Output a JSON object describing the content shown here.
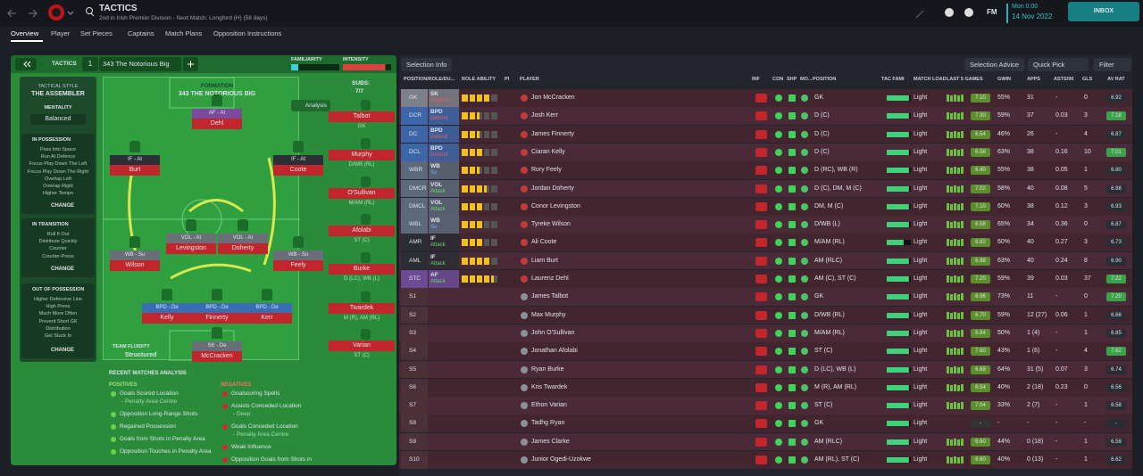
{
  "header": {
    "title": "TACTICS",
    "subtitle": "2nd in Irish Premier Division - Next Match: Longford (H) (58 days)",
    "time": "Mon 0:00",
    "date": "14 Nov 2022",
    "fm": "FM",
    "inbox": "INBOX"
  },
  "tabs": [
    "Overview",
    "Player",
    "Set Pieces",
    "Captains",
    "Match Plans",
    "Opposition Instructions"
  ],
  "tactic_bar": {
    "label": "TACTICS",
    "slot": "1",
    "name": "343 The Notorious Big",
    "familiarity": {
      "label": "FAMILIARITY",
      "value": 15
    },
    "intensity": {
      "label": "INTENSITY",
      "value": 88
    }
  },
  "style": {
    "label": "TACTICAL STYLE",
    "value": "THE ASSEMBLER",
    "mentality_label": "MENTALITY",
    "mentality": "Balanced"
  },
  "instructions": [
    {
      "title": "IN POSSESSION",
      "items": [
        "Pass Into Space",
        "Run At Defence",
        "Focus Play Down The Left",
        "Focus Play Down The Right",
        "Overlap Left",
        "Overlap Right",
        "Higher Tempo"
      ],
      "button": "CHANGE"
    },
    {
      "title": "IN TRANSITION",
      "items": [
        "Roll It Out",
        "Distribute Quickly",
        "Counter",
        "Counter-Press"
      ],
      "button": "CHANGE"
    },
    {
      "title": "OUT OF POSSESSION",
      "items": [
        "Higher Defensive Line",
        "High Press",
        "Much More Often",
        "Prevent Short GK",
        "Distribution",
        "Get Stuck In"
      ],
      "button": "CHANGE"
    }
  ],
  "formation": {
    "label": "FORMATION",
    "name": "343 THE NOTORIOUS BIG",
    "subs_label": "SUBS:",
    "subs_count": "7/7",
    "analysis": "Analysis",
    "fluidity_label": "TEAM FLUIDITY",
    "fluidity": "Structured"
  },
  "pitch": [
    {
      "role": "AF - At",
      "name": "Dehl"
    },
    {
      "role": "IF - At",
      "name": "Burt"
    },
    {
      "role": "IF - At",
      "name": "Coote"
    },
    {
      "role": "VOL - At",
      "name": "Levingston"
    },
    {
      "role": "VOL - At",
      "name": "Doherty"
    },
    {
      "role": "WB - Su",
      "name": "Wilson"
    },
    {
      "role": "WB - Su",
      "name": "Feely"
    },
    {
      "role": "BPD - De",
      "name": "Kelly"
    },
    {
      "role": "BPD - De",
      "name": "Finnerty"
    },
    {
      "role": "BPD - De",
      "name": "Kerr"
    },
    {
      "role": "SK - De",
      "name": "McCracken"
    }
  ],
  "subs": [
    {
      "name": "Talbot",
      "position": "GK"
    },
    {
      "name": "Murphy",
      "position": "D/WB (RL)"
    },
    {
      "name": "O'Sullivan",
      "position": "M/AM (RL)"
    },
    {
      "name": "Afolabi",
      "position": "ST (C)"
    },
    {
      "name": "Burke",
      "position": "D (LC), WB (L)"
    },
    {
      "name": "Twardek",
      "position": "M (R), AM (RL)"
    },
    {
      "name": "Varian",
      "position": "ST (C)"
    }
  ],
  "analysis": {
    "title": "RECENT MATCHES ANALYSIS",
    "positives_label": "POSITIVES",
    "negatives_label": "NEGATIVES",
    "positives": [
      {
        "text": "Goals Scored Location",
        "detail": "- Penalty Area Centre"
      },
      {
        "text": "Opposition Long-Range Shots"
      },
      {
        "text": "Regained Possession"
      },
      {
        "text": "Goals from Shots in Penalty Area"
      },
      {
        "text": "Opposition Touches in Penalty Area"
      }
    ],
    "negatives": [
      {
        "text": "Goalscoring Spells"
      },
      {
        "text": "Assists Conceded Location",
        "detail": "- Deep"
      },
      {
        "text": "Goals Conceded Location",
        "detail": "- Penalty Area Centre"
      },
      {
        "text": "Weak Influence"
      },
      {
        "text": "Opposition Goals from Shots in"
      }
    ]
  },
  "toolbar": {
    "selection_info": "Selection Info",
    "selection_advice": "Selection Advice",
    "quick_pick": "Quick Pick",
    "filter": "Filter"
  },
  "table": {
    "columns": [
      "POSITION/ROLE/DU...",
      "ROLE ABILITY",
      "PI",
      "PLAYER",
      "INF",
      "CON",
      "SHP",
      "MO...",
      "POSITION",
      "TAC FAMI",
      "MATCH LOAD",
      "LAST 5 GAMES",
      "GWIN",
      "APPS",
      "ASTS/90",
      "GLS",
      "AV RAT"
    ],
    "rows": [
      {
        "pos": "GK",
        "role": "SK",
        "duty": "Defend",
        "stars": 4,
        "player": "Jon McCracken",
        "position": "GK",
        "tac_fam": 92,
        "load": "Light",
        "rating": "7.10",
        "gwin": "55%",
        "apps": "31",
        "asts": "-",
        "gls": "0",
        "av_rat": "6.92"
      },
      {
        "pos": "DCR",
        "role": "BPD",
        "duty": "Defend",
        "stars": 2.5,
        "player": "Josh Kerr",
        "position": "D (C)",
        "tac_fam": 92,
        "load": "Light",
        "rating": "7.30",
        "gwin": "59%",
        "apps": "37",
        "asts": "0.03",
        "gls": "3",
        "av_rat": "7.18"
      },
      {
        "pos": "DC",
        "role": "BPD",
        "duty": "Defend",
        "stars": 2.5,
        "player": "James Finnerty",
        "position": "D (C)",
        "tac_fam": 92,
        "load": "Light",
        "rating": "6.54",
        "gwin": "46%",
        "apps": "26",
        "asts": "-",
        "gls": "4",
        "av_rat": "6.87"
      },
      {
        "pos": "DCL",
        "role": "BPD",
        "duty": "Defend",
        "stars": 3,
        "player": "Ciaran Kelly",
        "position": "D (C)",
        "tac_fam": 92,
        "load": "Light",
        "rating": "6.58",
        "gwin": "63%",
        "apps": "38",
        "asts": "0.16",
        "gls": "10",
        "av_rat": "7.01"
      },
      {
        "pos": "WBR",
        "role": "WB",
        "duty": "Su",
        "stars": 2.5,
        "player": "Rory Feely",
        "position": "D (RC), WB (R)",
        "tac_fam": 92,
        "load": "Light",
        "rating": "6.40",
        "gwin": "55%",
        "apps": "38",
        "asts": "0.05",
        "gls": "1",
        "av_rat": "6.80"
      },
      {
        "pos": "DMCR",
        "role": "VOL",
        "duty": "Attack",
        "stars": 3.5,
        "player": "Jordan Doherty",
        "position": "D (C), DM, M (C)",
        "tac_fam": 92,
        "load": "Light",
        "rating": "7.02",
        "gwin": "58%",
        "apps": "40",
        "asts": "0.08",
        "gls": "5",
        "av_rat": "6.98"
      },
      {
        "pos": "DMCL",
        "role": "VOL",
        "duty": "Attack",
        "stars": 3,
        "player": "Conor Levingston",
        "position": "DM, M (C)",
        "tac_fam": 92,
        "load": "Light",
        "rating": "7.10",
        "gwin": "60%",
        "apps": "38",
        "asts": "0.12",
        "gls": "3",
        "av_rat": "6.93"
      },
      {
        "pos": "WBL",
        "role": "WB",
        "duty": "Su",
        "stars": 3,
        "player": "Tyreke Wilson",
        "position": "D/WB (L)",
        "tac_fam": 92,
        "load": "Light",
        "rating": "6.58",
        "gwin": "65%",
        "apps": "34",
        "asts": "0.36",
        "gls": "0",
        "av_rat": "6.87"
      },
      {
        "pos": "AMR",
        "role": "IF",
        "duty": "Attack",
        "stars": 3,
        "player": "Ali Coote",
        "position": "M/AM (RL)",
        "tac_fam": 70,
        "load": "Light",
        "rating": "6.82",
        "gwin": "60%",
        "apps": "40",
        "asts": "0.27",
        "gls": "3",
        "av_rat": "6.73"
      },
      {
        "pos": "AML",
        "role": "IF",
        "duty": "Attack",
        "stars": 4,
        "player": "Liam Burt",
        "position": "AM (RLC)",
        "tac_fam": 92,
        "load": "Light",
        "rating": "6.88",
        "gwin": "63%",
        "apps": "40",
        "asts": "0.24",
        "gls": "8",
        "av_rat": "6.90"
      },
      {
        "pos": "STC",
        "role": "AF",
        "duty": "Attack",
        "stars": 4.5,
        "player": "Laurenz Dehl",
        "position": "AM (C), ST (C)",
        "tac_fam": 92,
        "load": "Light",
        "rating": "7.20",
        "gwin": "59%",
        "apps": "39",
        "asts": "0.03",
        "gls": "37",
        "av_rat": "7.22"
      },
      {
        "pos": "S1",
        "player": "James Talbot",
        "position": "GK",
        "tac_fam": 92,
        "load": "Light",
        "rating": "6.96",
        "gwin": "73%",
        "apps": "11",
        "asts": "-",
        "gls": "0",
        "av_rat": "7.20"
      },
      {
        "pos": "S2",
        "player": "Max Murphy",
        "position": "D/WB (RL)",
        "tac_fam": 92,
        "load": "Light",
        "rating": "6.70",
        "gwin": "59%",
        "apps": "12 (27)",
        "asts": "0.06",
        "gls": "1",
        "av_rat": "6.66"
      },
      {
        "pos": "S3",
        "player": "John O'Sullivan",
        "position": "M/AM (RL)",
        "tac_fam": 92,
        "load": "Light",
        "rating": "6.84",
        "gwin": "50%",
        "apps": "1 (4)",
        "asts": "-",
        "gls": "1",
        "av_rat": "6.85"
      },
      {
        "pos": "S4",
        "player": "Jonathan Afolabi",
        "position": "ST (C)",
        "tac_fam": 92,
        "load": "Light",
        "rating": "7.60",
        "gwin": "43%",
        "apps": "1 (6)",
        "asts": "-",
        "gls": "4",
        "av_rat": "7.62"
      },
      {
        "pos": "S5",
        "player": "Ryan Burke",
        "position": "D (LC), WB (L)",
        "tac_fam": 92,
        "load": "Light",
        "rating": "6.68",
        "gwin": "64%",
        "apps": "31 (5)",
        "asts": "0.07",
        "gls": "3",
        "av_rat": "6.74"
      },
      {
        "pos": "S6",
        "player": "Kris Twardek",
        "position": "M (R), AM (RL)",
        "tac_fam": 92,
        "load": "Light",
        "rating": "6.54",
        "gwin": "40%",
        "apps": "2 (18)",
        "asts": "0.23",
        "gls": "0",
        "av_rat": "6.56"
      },
      {
        "pos": "S7",
        "player": "Ethon Varian",
        "position": "ST (C)",
        "tac_fam": 92,
        "load": "Light",
        "rating": "7.04",
        "gwin": "33%",
        "apps": "2 (7)",
        "asts": "-",
        "gls": "1",
        "av_rat": "6.58"
      },
      {
        "pos": "S8",
        "player": "Tadhg Ryan",
        "position": "GK",
        "tac_fam": 92,
        "load": "Light",
        "rating": "-",
        "gwin": "-",
        "apps": "-",
        "asts": "-",
        "gls": "-",
        "av_rat": "-"
      },
      {
        "pos": "S9",
        "player": "James Clarke",
        "position": "AM (RLC)",
        "tac_fam": 92,
        "load": "Light",
        "rating": "6.60",
        "gwin": "44%",
        "apps": "0 (18)",
        "asts": "-",
        "gls": "1",
        "av_rat": "6.58"
      },
      {
        "pos": "S10",
        "player": "Junior Ogedi-Uzokwe",
        "position": "AM (RL), ST (C)",
        "tac_fam": 92,
        "load": "Light",
        "rating": "6.60",
        "gwin": "40%",
        "apps": "0 (13)",
        "asts": "-",
        "gls": "1",
        "av_rat": "6.62"
      }
    ]
  }
}
